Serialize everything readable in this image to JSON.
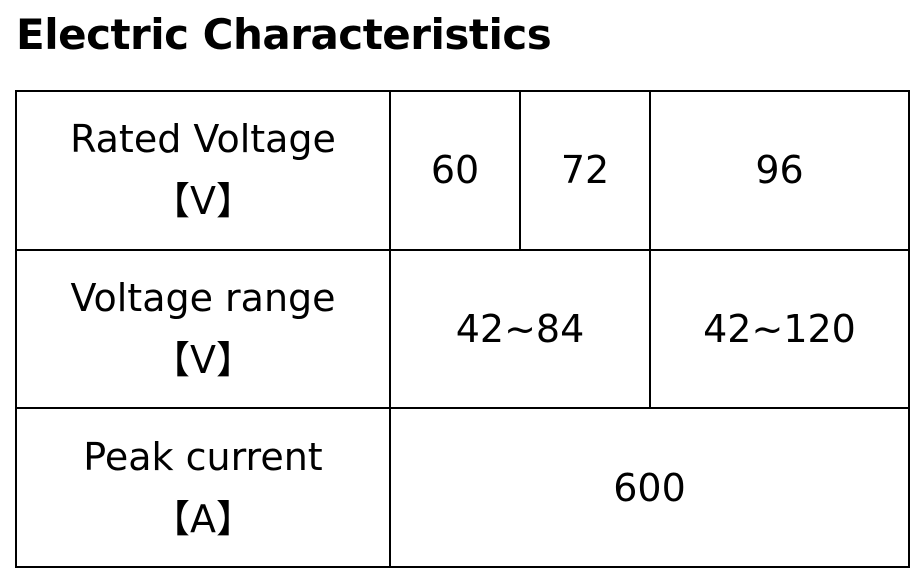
{
  "header": {
    "title": "Electric Characteristics"
  },
  "table": {
    "rows": [
      {
        "label": "Rated Voltage",
        "unit": "【V】",
        "cells": [
          "60",
          "72",
          "96"
        ]
      },
      {
        "label": "Voltage range",
        "unit": "【V】",
        "cells": [
          "42~84",
          "42~120"
        ]
      },
      {
        "label": "Peak current",
        "unit": "【A】",
        "cells": [
          "600"
        ]
      }
    ]
  }
}
